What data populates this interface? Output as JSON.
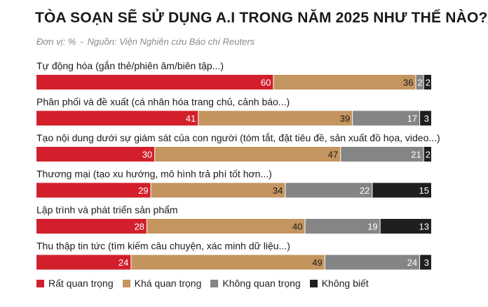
{
  "title": "TÒA SOẠN SẼ SỬ DỤNG A.I TRONG NĂM 2025 NHƯ THẾ NÀO?",
  "subtitle_unit": "Đơn vị: %",
  "subtitle_sep": "-",
  "subtitle_source": "Nguồn: Viện Nghiên cứu Báo chí Reuters",
  "chart_data": {
    "type": "bar",
    "stacked": true,
    "orientation": "horizontal",
    "categories": [
      "Tự động hóa (gắn thẻ/phiên âm/biên tập...)",
      "Phân phối và đề xuất (cá nhân hóa trang chủ, cảnh báo...)",
      "Tạo nội dung dưới sự giám sát của con người (tóm tắt, đặt tiêu đề, sản xuất đồ họa, video...)",
      "Thương mại (tạo xu hướng, mô hình trả phí tốt hơn...)",
      "Lập trình và phát triển sản phẩm",
      "Thu thập tin tức (tìm kiếm câu chuyện, xác minh dữ liệu...)"
    ],
    "series": [
      {
        "name": "Rất quan trọng",
        "color": "#d21f2b",
        "values": [
          60,
          41,
          30,
          29,
          28,
          24
        ]
      },
      {
        "name": "Khá quan trọng",
        "color": "#c4955f",
        "values": [
          36,
          39,
          47,
          34,
          40,
          49
        ]
      },
      {
        "name": "Không quan trọng",
        "color": "#858585",
        "values": [
          2,
          17,
          21,
          22,
          19,
          24
        ]
      },
      {
        "name": "Không biết",
        "color": "#1f1f1f",
        "values": [
          2,
          3,
          2,
          15,
          13,
          3
        ]
      }
    ],
    "legend_position": "bottom",
    "grid": false
  }
}
